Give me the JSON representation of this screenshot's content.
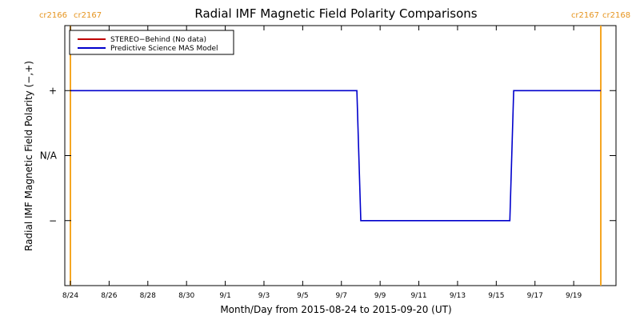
{
  "chart_data": {
    "type": "line",
    "title": "Radial IMF Magnetic Field Polarity Comparisons",
    "xlabel": "Month/Day from 2015-08-24 to 2015-09-20 (UT)",
    "ylabel": "Radial IMF Magnetic Field Polarity (−,+)",
    "x_unit": "day of year 2015 (UT)",
    "xlim": [
      236.0,
      263.4
    ],
    "x_ticks": [
      {
        "x": 236,
        "label": "8/24"
      },
      {
        "x": 238,
        "label": "8/26"
      },
      {
        "x": 240,
        "label": "8/28"
      },
      {
        "x": 242,
        "label": "8/30"
      },
      {
        "x": 244,
        "label": "9/1"
      },
      {
        "x": 246,
        "label": "9/3"
      },
      {
        "x": 248,
        "label": "9/5"
      },
      {
        "x": 250,
        "label": "9/7"
      },
      {
        "x": 252,
        "label": "9/9"
      },
      {
        "x": 254,
        "label": "9/11"
      },
      {
        "x": 256,
        "label": "9/13"
      },
      {
        "x": 258,
        "label": "9/15"
      },
      {
        "x": 260,
        "label": "9/17"
      },
      {
        "x": 262,
        "label": "9/19"
      }
    ],
    "ylim": [
      -2,
      2
    ],
    "y_ticks": [
      {
        "y": 1,
        "label": "+"
      },
      {
        "y": 0,
        "label": "N/A"
      },
      {
        "y": -1,
        "label": "−"
      }
    ],
    "series": [
      {
        "name": "STEREO−Behind (No data)",
        "color": "#c00000",
        "x": [],
        "y": []
      },
      {
        "name": "Predictive Science MAS Model",
        "color": "#0000cc",
        "x": [
          236.0,
          250.8,
          251.0,
          258.7,
          258.9,
          263.4
        ],
        "y": [
          1,
          1,
          -1,
          -1,
          1,
          1
        ]
      }
    ],
    "carrington_markers": [
      {
        "x": 236.0,
        "color": "#f5a623",
        "labels": [
          "cr2166",
          "cr2167"
        ],
        "side": "left"
      },
      {
        "x": 263.4,
        "color": "#f5a623",
        "labels": [
          "cr2167",
          "cr2168"
        ],
        "side": "right"
      }
    ],
    "legend": "top-left",
    "grid": false
  }
}
